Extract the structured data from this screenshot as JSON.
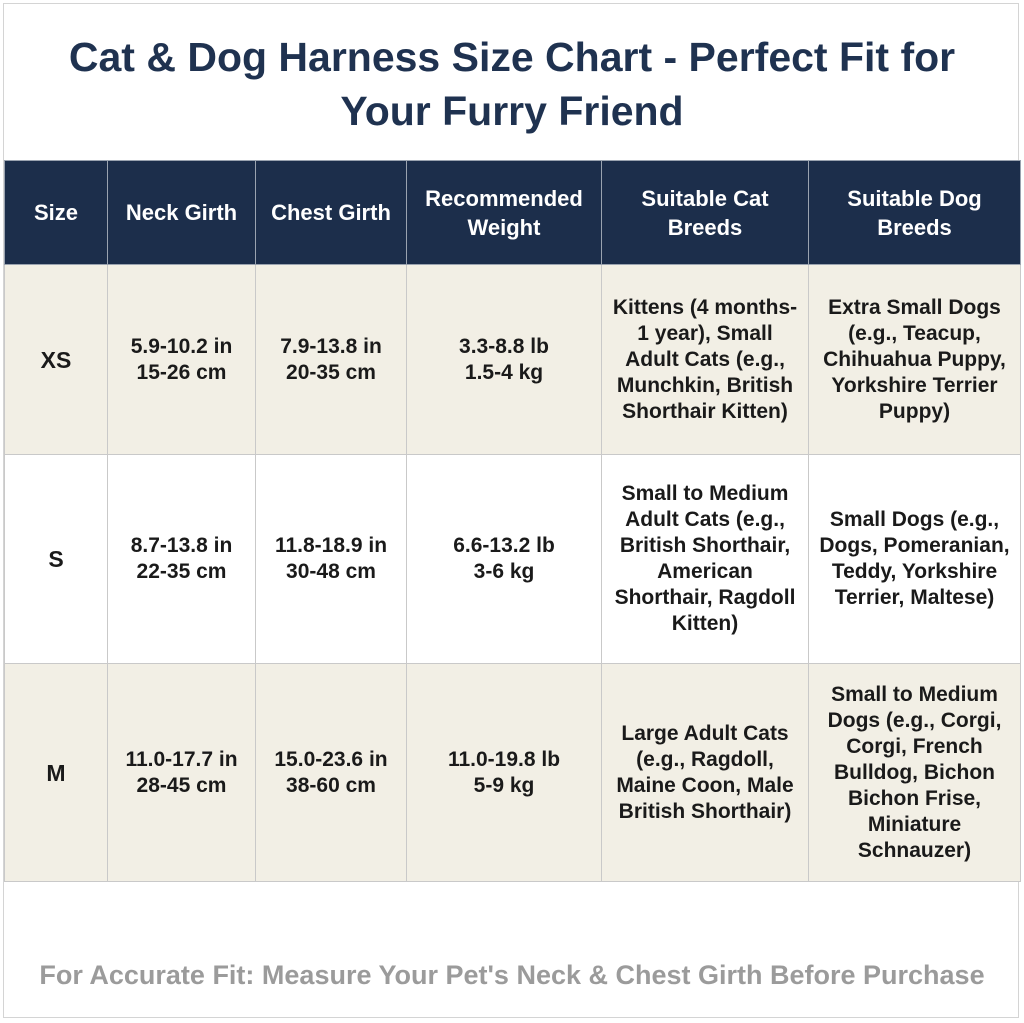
{
  "header": {
    "title": "Cat & Dog Harness Size Chart - Perfect Fit for Your Furry Friend"
  },
  "table": {
    "columns": [
      "Size",
      "Neck Girth",
      "Chest Girth",
      "Recommended Weight",
      "Suitable Cat Breeds",
      "Suitable Dog Breeds"
    ],
    "rows": [
      [
        "XS",
        "5.9-10.2 in\n15-26 cm",
        "7.9-13.8 in\n20-35 cm",
        "3.3-8.8 lb\n1.5-4 kg",
        "Kittens (4 months-1 year), Small Adult Cats (e.g., Munchkin, British Shorthair Kitten)",
        "Extra Small Dogs (e.g., Teacup, Chihuahua Puppy, Yorkshire Terrier Puppy)"
      ],
      [
        "S",
        "8.7-13.8 in\n22-35 cm",
        "11.8-18.9 in\n30-48 cm",
        "6.6-13.2 lb\n3-6 kg",
        "Small to Medium Adult Cats (e.g., British Shorthair, American Shorthair, Ragdoll Kitten)",
        "Small Dogs (e.g., Dogs, Pomeranian, Teddy, Yorkshire Terrier, Maltese)"
      ],
      [
        "M",
        "11.0-17.7 in\n28-45 cm",
        "15.0-23.6 in\n38-60 cm",
        "11.0-19.8 lb\n5-9 kg",
        "Large Adult Cats (e.g., Ragdoll, Maine Coon, Male British Shorthair)",
        "Small to Medium Dogs (e.g., Corgi, Corgi, French Bulldog, Bichon Bichon Frise, Miniature Schnauzer)"
      ]
    ]
  },
  "footer": {
    "note": "For Accurate Fit: Measure Your Pet's Neck & Chest Girth Before Purchase"
  }
}
